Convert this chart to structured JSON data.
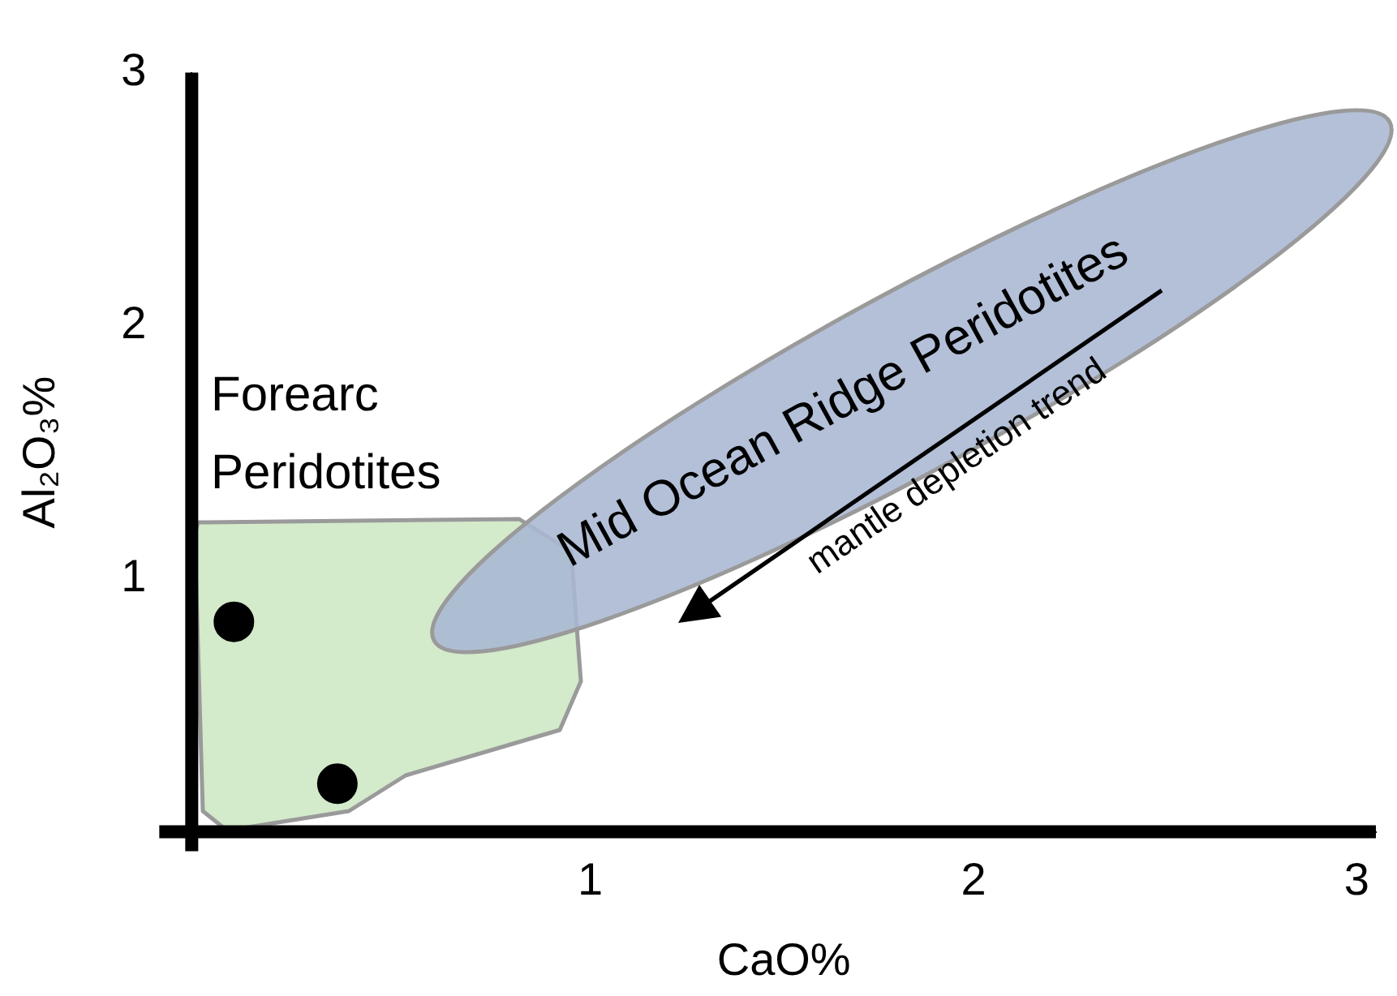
{
  "chart_data": {
    "type": "scatter",
    "xlabel": "CaO%",
    "ylabel": "Al₂O₃%",
    "xlim": [
      -0.04,
      3.05
    ],
    "ylim": [
      0,
      3
    ],
    "xticks": [
      1,
      2,
      3
    ],
    "yticks": [
      1,
      2,
      3
    ],
    "grid": false,
    "legend": false,
    "marker": "circle",
    "series": [
      {
        "color": "#000000",
        "x": [
          0.07,
          0.34
        ],
        "values": [
          0.83,
          0.19
        ]
      }
    ],
    "annotations": [
      "Forearc Peridotites",
      "Mid Ocean Ridge Peridotites",
      "mantle depletion trend"
    ]
  }
}
